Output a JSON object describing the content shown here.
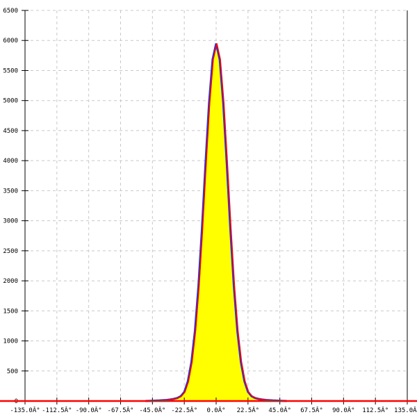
{
  "chart_data": {
    "type": "area",
    "title": "",
    "xlabel": "",
    "ylabel": "",
    "xlim": [
      -135,
      135
    ],
    "ylim": [
      0,
      6500
    ],
    "grid": true,
    "x_ticks": [
      "-135.0Â°",
      "-112.5Â°",
      "-90.0Â°",
      "-67.5Â°",
      "-45.0Â°",
      "-22.5Â°",
      "0.0Â°",
      "22.5Â°",
      "45.0Â°",
      "67.5Â°",
      "90.0Â°",
      "112.5Â°",
      "135.0Â°"
    ],
    "x_tick_values": [
      -135,
      -112.5,
      -90,
      -67.5,
      -45,
      -22.5,
      0,
      22.5,
      45,
      67.5,
      90,
      112.5,
      135
    ],
    "y_ticks": [
      "0",
      "500",
      "1000",
      "1500",
      "2000",
      "2500",
      "3000",
      "3500",
      "4000",
      "4500",
      "5000",
      "5500",
      "6000",
      "6500"
    ],
    "y_tick_values": [
      0,
      500,
      1000,
      1500,
      2000,
      2500,
      3000,
      3500,
      4000,
      4500,
      5000,
      5500,
      6000,
      6500
    ],
    "series": [
      {
        "x": [
          -50,
          -45,
          -40,
          -35,
          -32.5,
          -30,
          -27.5,
          -25,
          -22.5,
          -20,
          -17.5,
          -15,
          -12.5,
          -10,
          -7.5,
          -5,
          -2.5,
          0,
          2.5,
          5,
          7.5,
          10,
          12.5,
          15,
          17.5,
          20,
          22.5,
          25,
          27.5,
          30,
          32.5,
          35,
          40,
          45,
          50
        ],
        "y": [
          0,
          5,
          10,
          18,
          25,
          35,
          50,
          80,
          151,
          327,
          644,
          1162,
          1914,
          2879,
          3957,
          4962,
          5686,
          5950,
          5686,
          4962,
          3957,
          2879,
          1914,
          1162,
          644,
          327,
          151,
          80,
          50,
          35,
          25,
          18,
          10,
          5,
          0
        ]
      }
    ],
    "colors": {
      "fill": "#ffff00",
      "outline": "#3333cc",
      "line": "#ff0000",
      "baseline_dark": "#993333",
      "axis": "#000000",
      "grid": "#c8c8c8"
    }
  }
}
